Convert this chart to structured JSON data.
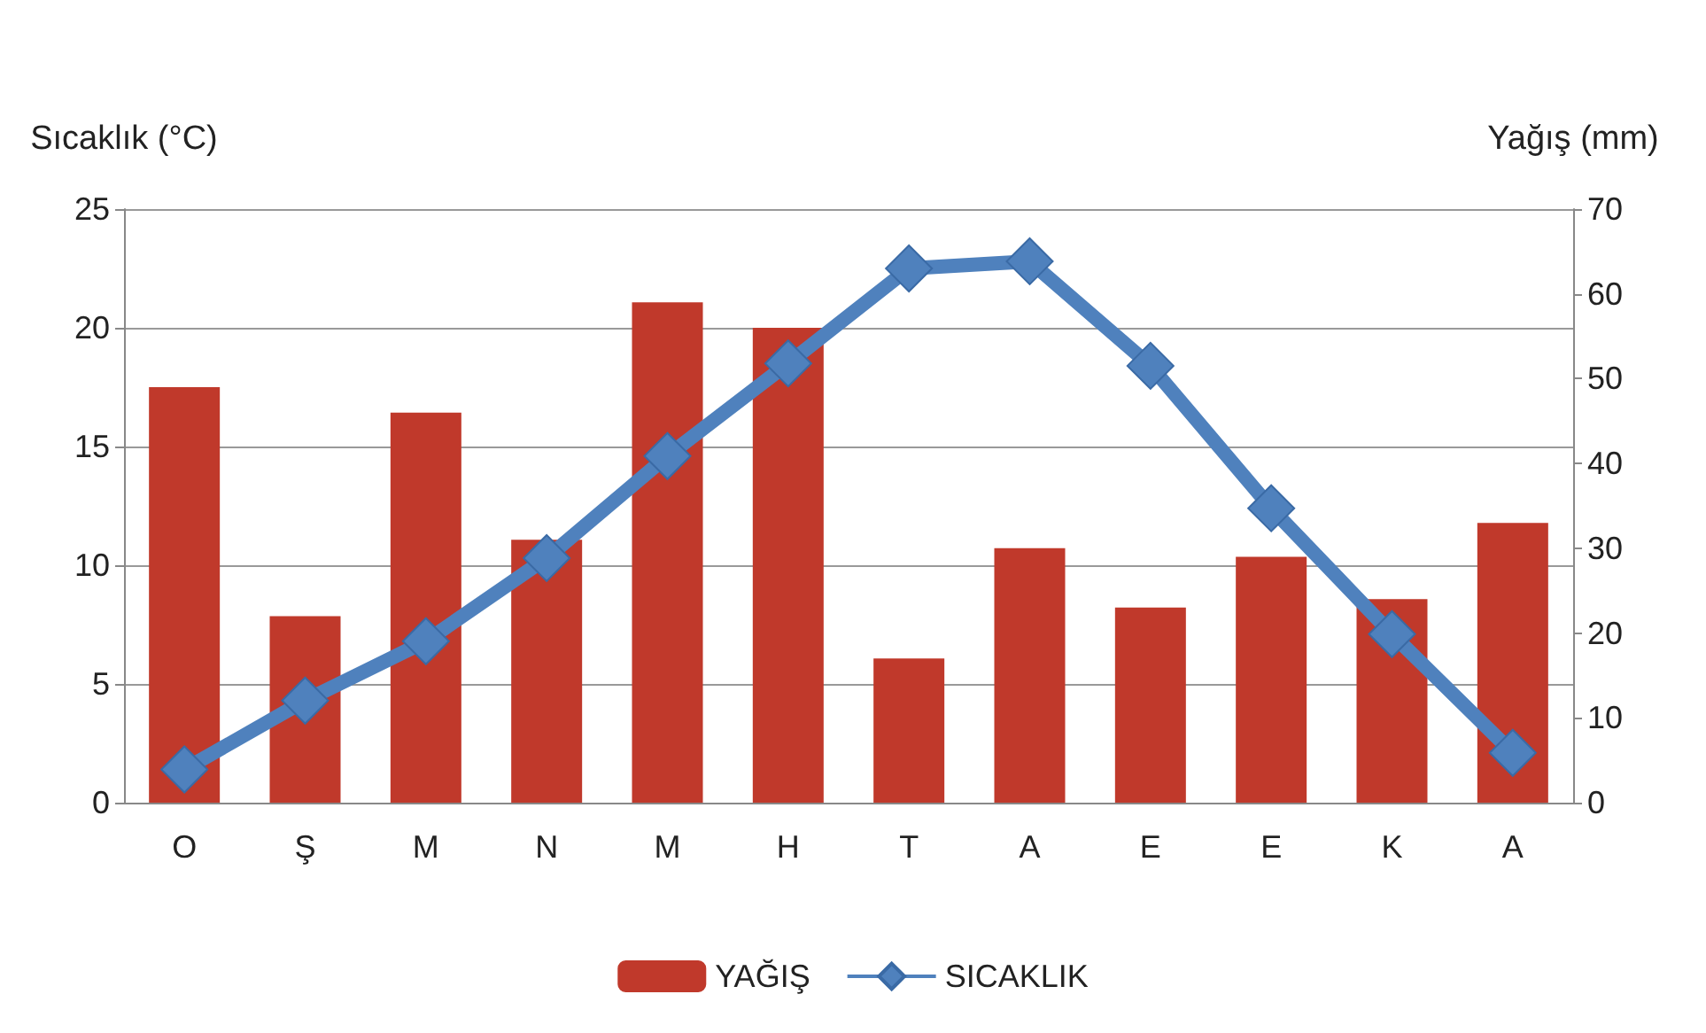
{
  "chart_data": {
    "type": "bar",
    "ylabel": "Sıcaklık (°C)",
    "y2label": "Yağış (mm)",
    "categories": [
      "O",
      "Ş",
      "M",
      "N",
      "M",
      "H",
      "T",
      "A",
      "E",
      "E",
      "K",
      "A"
    ],
    "series": [
      {
        "name": "YAĞIŞ",
        "axis": "y2",
        "color": "#c0392b",
        "values": [
          49,
          22,
          46,
          31,
          59,
          56,
          17,
          30,
          23,
          29,
          24,
          33
        ]
      },
      {
        "name": "SICAKLIK",
        "type": "line",
        "axis": "y",
        "color": "#4f81bd",
        "marker": "diamond",
        "values": [
          1.4,
          4.3,
          6.8,
          10.3,
          14.6,
          18.5,
          22.5,
          22.8,
          18.4,
          12.4,
          7.1,
          2.1
        ]
      }
    ],
    "ylim": [
      0,
      25
    ],
    "yticks": [
      0,
      5,
      10,
      15,
      20,
      25
    ],
    "y2lim": [
      0,
      70
    ],
    "y2ticks": [
      0,
      10,
      20,
      30,
      40,
      50,
      60,
      70
    ],
    "grid": "y",
    "legend": "bottom"
  }
}
